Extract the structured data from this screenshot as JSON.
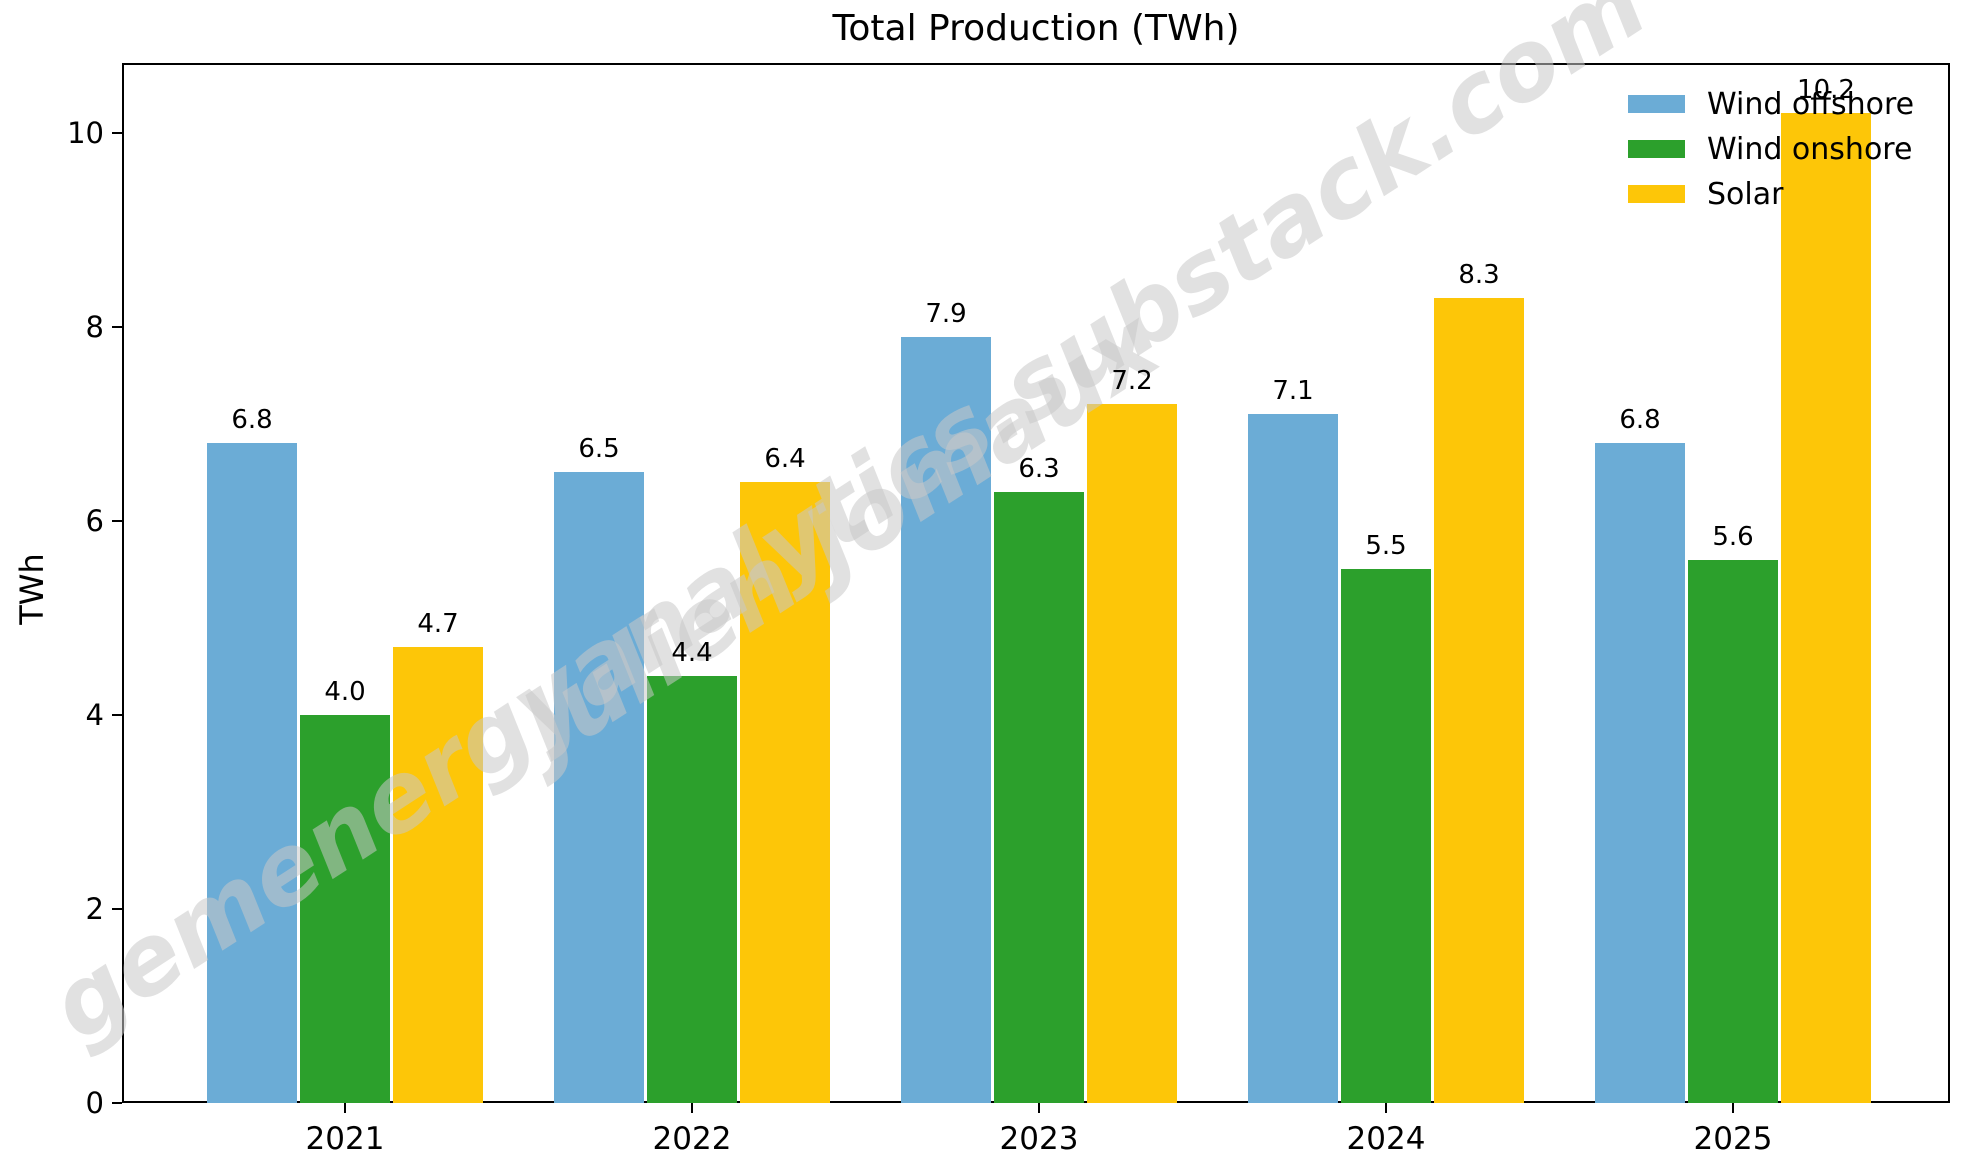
{
  "title": "Total Production (TWh)",
  "ylabel": "TWh",
  "watermark": {
    "line1": "gemenergyanalytics.substack.com",
    "line2": "Julien Jomaux"
  },
  "chart_data": {
    "type": "bar",
    "title": "Total Production (TWh)",
    "xlabel": "",
    "ylabel": "TWh",
    "categories": [
      "2021",
      "2022",
      "2023",
      "2024",
      "2025"
    ],
    "series": [
      {
        "name": "Wind offshore",
        "color": "#6bacd6",
        "values": [
          6.8,
          6.5,
          7.9,
          7.1,
          6.8
        ]
      },
      {
        "name": "Wind onshore",
        "color": "#2ca02c",
        "values": [
          4.0,
          4.4,
          6.3,
          5.5,
          5.6
        ]
      },
      {
        "name": "Solar",
        "color": "#fdc608",
        "values": [
          4.7,
          6.4,
          7.2,
          8.3,
          10.2
        ]
      }
    ],
    "bar_value_labels": true,
    "ylim": [
      0,
      10.72
    ],
    "yticks": [
      0,
      2,
      4,
      6,
      8,
      10
    ],
    "legend_position": "upper right",
    "legend_frame": false,
    "grid": false,
    "axis_color": "#000000",
    "background_color": "#ffffff"
  }
}
